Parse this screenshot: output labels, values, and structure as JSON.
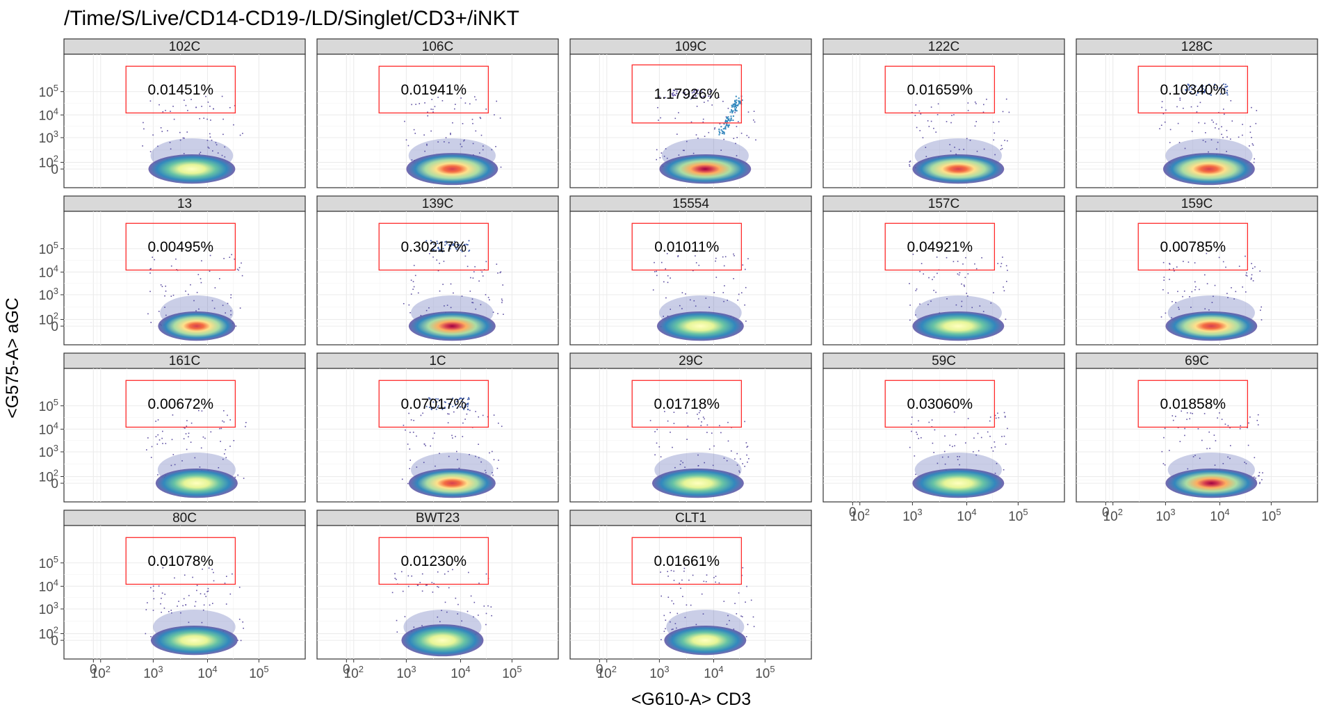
{
  "chart_data": {
    "type": "scatter",
    "title": "/Time/S/Live/CD14-CD19-/LD/Singlet/CD3+/iNKT",
    "xlabel": "<G610-A> CD3",
    "ylabel": "<G575-A> aGC",
    "x_ticks": [
      "0",
      "10^2",
      "10^3",
      "10^4",
      "10^5"
    ],
    "y_ticks": [
      "0",
      "10^2",
      "10^3",
      "10^4",
      "10^5"
    ],
    "grid": true,
    "facets": [
      {
        "label": "102C",
        "gate_pct": "0.01451%"
      },
      {
        "label": "106C",
        "gate_pct": "0.01941%"
      },
      {
        "label": "109C",
        "gate_pct": "1.17926%"
      },
      {
        "label": "122C",
        "gate_pct": "0.01659%"
      },
      {
        "label": "128C",
        "gate_pct": "0.10340%"
      },
      {
        "label": "13",
        "gate_pct": "0.00495%"
      },
      {
        "label": "139C",
        "gate_pct": "0.30217%"
      },
      {
        "label": "15554",
        "gate_pct": "0.01011%"
      },
      {
        "label": "157C",
        "gate_pct": "0.04921%"
      },
      {
        "label": "159C",
        "gate_pct": "0.00785%"
      },
      {
        "label": "161C",
        "gate_pct": "0.00672%"
      },
      {
        "label": "1C",
        "gate_pct": "0.07017%"
      },
      {
        "label": "29C",
        "gate_pct": "0.01718%"
      },
      {
        "label": "59C",
        "gate_pct": "0.03060%"
      },
      {
        "label": "69C",
        "gate_pct": "0.01858%"
      },
      {
        "label": "80C",
        "gate_pct": "0.01078%"
      },
      {
        "label": "BWT23",
        "gate_pct": "0.01230%"
      },
      {
        "label": "CLT1",
        "gate_pct": "0.01661%"
      }
    ]
  }
}
